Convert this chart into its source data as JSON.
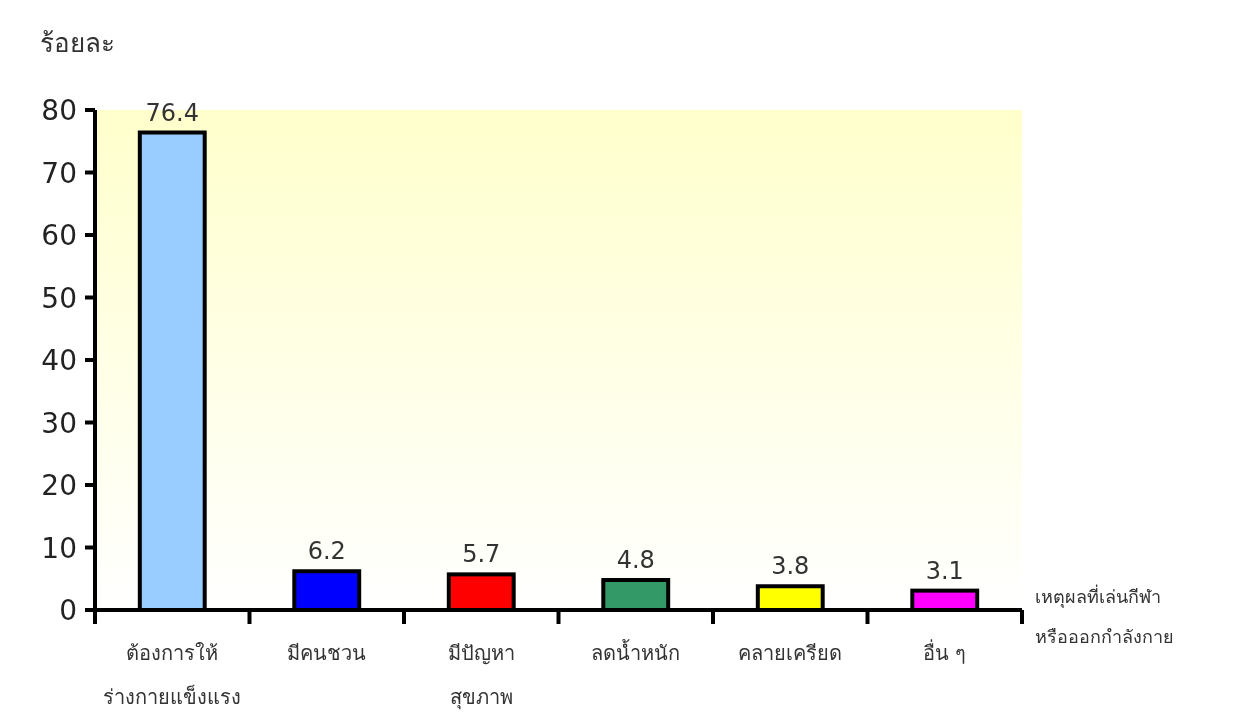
{
  "chart_data": {
    "type": "bar",
    "ylabel": "ร้อยละ",
    "xlabel": "เหตุผลที่เล่นกีฬา\nหรือออกกำลังกาย",
    "categories": [
      "ต้องการให้\nร่างกายแข็งแรง",
      "มีคนชวน",
      "มีปัญหา\nสุขภาพ",
      "ลดน้ำหนัก",
      "คลายเครียด",
      "อื่น ๆ"
    ],
    "values": [
      76.4,
      6.2,
      5.7,
      4.8,
      3.8,
      3.1
    ],
    "colors": [
      "#99ccff",
      "#0000ff",
      "#ff0000",
      "#339966",
      "#ffff00",
      "#ff00ff"
    ],
    "ylim": [
      0,
      80
    ],
    "yticks": [
      0,
      10,
      20,
      30,
      40,
      50,
      60,
      70,
      80
    ],
    "data_labels": true,
    "grid": false
  }
}
